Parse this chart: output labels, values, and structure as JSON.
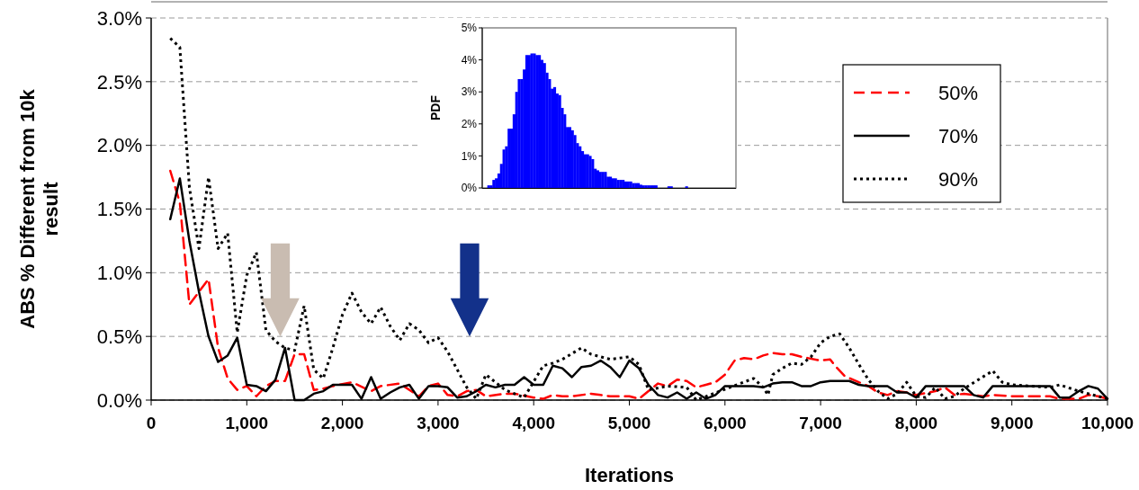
{
  "chart_data": [
    {
      "type": "line",
      "xlabel": "Iterations",
      "ylabel": "ABS % Different from 10k result",
      "xlim": [
        0,
        10000
      ],
      "ylim": [
        0,
        3
      ],
      "xticks": [
        0,
        {
          "value": 1000,
          "label": "1,000"
        },
        {
          "value": 2000,
          "label": "2,000"
        },
        {
          "value": 3000,
          "label": "3,000"
        },
        {
          "value": 4000,
          "label": "4,000"
        },
        {
          "value": 5000,
          "label": "5,000"
        },
        {
          "value": 6000,
          "label": "6,000"
        },
        {
          "value": 7000,
          "label": "7,000"
        },
        {
          "value": 8000,
          "label": "8,000"
        },
        {
          "value": 9000,
          "label": "9,000"
        },
        {
          "value": 10000,
          "label": "10,000"
        }
      ],
      "yticks": [
        {
          "value": 0,
          "label": "0.0%"
        },
        {
          "value": 0.5,
          "label": "0.5%"
        },
        {
          "value": 1,
          "label": "1.0%"
        },
        {
          "value": 1.5,
          "label": "1.5%"
        },
        {
          "value": 2,
          "label": "2.0%"
        },
        {
          "value": 2.5,
          "label": "2.5%"
        },
        {
          "value": 3,
          "label": "3.0%"
        }
      ],
      "grid": "y",
      "legend": "top right",
      "marker": "none",
      "series": [
        {
          "name": "50%",
          "color": "#ff0000",
          "line_style": "dashed",
          "x": [
            200,
            300,
            400,
            500,
            600,
            700,
            800,
            900,
            1000,
            1100,
            1200,
            1300,
            1400,
            1500,
            1600,
            1700,
            1800,
            1900,
            2100,
            2300,
            2400,
            2600,
            2800,
            2900,
            3000,
            3100,
            3200,
            3300,
            3400,
            3500,
            3700,
            3800,
            4000,
            4100,
            4200,
            4300,
            4400,
            4600,
            4700,
            4800,
            5000,
            5100,
            5200,
            5300,
            5400,
            5500,
            5600,
            5700,
            5800,
            5900,
            6000,
            6100,
            6200,
            6300,
            6400,
            6500,
            6600,
            6700,
            6800,
            7000,
            7100,
            7150,
            7250,
            7400,
            7500,
            7600,
            7700,
            7800,
            7900,
            8000,
            8200,
            8300,
            8400,
            8500,
            8600,
            8700,
            8800,
            9000,
            9200,
            9400,
            9500,
            9700,
            9800,
            9900,
            10000
          ],
          "values": [
            1.8,
            1.55,
            0.75,
            0.85,
            0.95,
            0.41,
            0.17,
            0.08,
            0.11,
            0.03,
            0.11,
            0.15,
            0.15,
            0.36,
            0.36,
            0.08,
            0.09,
            0.11,
            0.14,
            0.07,
            0.11,
            0.13,
            0.03,
            0.11,
            0.13,
            0.04,
            0.03,
            0.07,
            0.08,
            0.03,
            0.05,
            0.05,
            0.02,
            0.01,
            0.04,
            0.03,
            0.03,
            0.05,
            0.04,
            0.03,
            0.03,
            0.01,
            0.07,
            0.13,
            0.11,
            0.16,
            0.15,
            0.1,
            0.12,
            0.14,
            0.2,
            0.31,
            0.33,
            0.32,
            0.35,
            0.37,
            0.36,
            0.36,
            0.34,
            0.31,
            0.32,
            0.27,
            0.19,
            0.14,
            0.11,
            0.06,
            0.04,
            0.07,
            0.06,
            0.04,
            0.07,
            0.1,
            0.04,
            0.05,
            0.04,
            0.03,
            0.04,
            0.03,
            0.03,
            0.03,
            0.01,
            0.01,
            0.04,
            0.03,
            0.01
          ]
        },
        {
          "name": "70%",
          "color": "#000000",
          "line_style": "solid",
          "x": [
            200,
            300,
            400,
            500,
            600,
            700,
            800,
            900,
            1000,
            1100,
            1200,
            1300,
            1400,
            1500,
            1600,
            1700,
            1800,
            1900,
            2000,
            2100,
            2200,
            2300,
            2400,
            2500,
            2600,
            2700,
            2800,
            2900,
            3000,
            3100,
            3200,
            3300,
            3400,
            3500,
            3600,
            3700,
            3800,
            3900,
            4000,
            4100,
            4200,
            4300,
            4400,
            4500,
            4600,
            4700,
            4800,
            4900,
            5000,
            5100,
            5200,
            5300,
            5400,
            5500,
            5600,
            5700,
            5800,
            5900,
            6000,
            6100,
            6200,
            6300,
            6400,
            6500,
            6600,
            6700,
            6800,
            6900,
            7000,
            7100,
            7200,
            7300,
            7400,
            7500,
            7600,
            7700,
            7800,
            7900,
            8000,
            8100,
            8200,
            8300,
            8400,
            8500,
            8600,
            8700,
            8800,
            8900,
            9000,
            9100,
            9200,
            9300,
            9400,
            9500,
            9600,
            9700,
            9800,
            9900,
            10000
          ],
          "values": [
            1.42,
            1.74,
            1.25,
            0.85,
            0.5,
            0.3,
            0.35,
            0.49,
            0.12,
            0.11,
            0.07,
            0.16,
            0.41,
            0.0,
            0.0,
            0.05,
            0.07,
            0.12,
            0.12,
            0.12,
            0.01,
            0.18,
            0.01,
            0.06,
            0.1,
            0.12,
            0.01,
            0.11,
            0.11,
            0.1,
            0.02,
            0.03,
            0.07,
            0.12,
            0.1,
            0.12,
            0.12,
            0.18,
            0.12,
            0.12,
            0.27,
            0.25,
            0.18,
            0.26,
            0.27,
            0.31,
            0.26,
            0.18,
            0.31,
            0.25,
            0.12,
            0.04,
            0.02,
            0.06,
            0.01,
            0.06,
            0.01,
            0.04,
            0.11,
            0.11,
            0.11,
            0.11,
            0.1,
            0.13,
            0.14,
            0.14,
            0.11,
            0.11,
            0.14,
            0.15,
            0.15,
            0.15,
            0.12,
            0.11,
            0.11,
            0.11,
            0.06,
            0.06,
            0.02,
            0.11,
            0.11,
            0.11,
            0.11,
            0.11,
            0.04,
            0.02,
            0.11,
            0.11,
            0.11,
            0.11,
            0.11,
            0.11,
            0.11,
            0.02,
            0.02,
            0.07,
            0.11,
            0.09,
            0.01
          ]
        },
        {
          "name": "90%",
          "color": "#000000",
          "line_style": "dotted",
          "x": [
            200,
            300,
            400,
            500,
            600,
            700,
            800,
            900,
            1000,
            1100,
            1200,
            1300,
            1400,
            1500,
            1600,
            1700,
            1800,
            1900,
            2000,
            2100,
            2200,
            2300,
            2400,
            2500,
            2600,
            2700,
            2800,
            2900,
            3000,
            3100,
            3200,
            3300,
            3400,
            3500,
            3700,
            3900,
            4100,
            4200,
            4300,
            4500,
            4600,
            4800,
            5000,
            5100,
            5200,
            5400,
            5600,
            5700,
            6300,
            6400,
            6450,
            6500,
            6600,
            6700,
            6800,
            6900,
            7000,
            7100,
            7200,
            7300,
            7400,
            7500,
            7600,
            7700,
            7800,
            7900,
            8000,
            8100,
            8200,
            8300,
            8400,
            8500,
            8800,
            8900,
            9000,
            9200,
            9400,
            9500,
            9700,
            10000
          ],
          "values": [
            2.84,
            2.77,
            1.67,
            1.19,
            1.75,
            1.19,
            1.31,
            0.53,
            0.98,
            1.16,
            0.55,
            0.46,
            0.41,
            0.39,
            0.74,
            0.24,
            0.17,
            0.41,
            0.67,
            0.84,
            0.69,
            0.6,
            0.73,
            0.58,
            0.47,
            0.6,
            0.55,
            0.45,
            0.49,
            0.38,
            0.24,
            0.1,
            0.01,
            0.2,
            0.08,
            0.02,
            0.27,
            0.29,
            0.32,
            0.41,
            0.36,
            0.32,
            0.34,
            0.28,
            0.08,
            0.11,
            0.1,
            0.0,
            0.17,
            0.1,
            0.04,
            0.2,
            0.25,
            0.29,
            0.28,
            0.34,
            0.45,
            0.5,
            0.52,
            0.41,
            0.28,
            0.16,
            0.07,
            0.01,
            0.05,
            0.14,
            0.03,
            0.02,
            0.1,
            0.01,
            0.03,
            0.09,
            0.23,
            0.14,
            0.12,
            0.11,
            0.1,
            0.12,
            0.07,
            0.01
          ]
        }
      ]
    },
    {
      "type": "bar",
      "ylabel": "PDF",
      "ylim": [
        0,
        5
      ],
      "yticks": [
        {
          "value": 0,
          "label": "0%"
        },
        {
          "value": 1,
          "label": "1%"
        },
        {
          "value": 2,
          "label": "2%"
        },
        {
          "value": 3,
          "label": "3%"
        },
        {
          "value": 4,
          "label": "4%"
        },
        {
          "value": 5,
          "label": "5%"
        }
      ],
      "color": "#0000ff",
      "categories": [
        null,
        null,
        null,
        null,
        null,
        null,
        null,
        null,
        null,
        null,
        null,
        null,
        null,
        null,
        null,
        null,
        null,
        null,
        null,
        null,
        null,
        null,
        null,
        null,
        null,
        null,
        null,
        null,
        null,
        null,
        null,
        null,
        null,
        null,
        null,
        null,
        null,
        null,
        null,
        null,
        null,
        null,
        null,
        null,
        null,
        null,
        null,
        null,
        null,
        null,
        null,
        null,
        null,
        null,
        null,
        null,
        null,
        null,
        null,
        null,
        null,
        null,
        null,
        null,
        null,
        null,
        null,
        null,
        null,
        null,
        null,
        null,
        null,
        null,
        null,
        null,
        null,
        null,
        null,
        null,
        null,
        null,
        null,
        null,
        null,
        null,
        null,
        null,
        null,
        null,
        null,
        null,
        null,
        null,
        null,
        null,
        null,
        null,
        null,
        null
      ],
      "values": [
        0,
        0,
        0.08,
        0.08,
        0.25,
        0.3,
        0.45,
        0.75,
        1.2,
        1.3,
        1.85,
        1.85,
        2.3,
        3.0,
        3.4,
        3.4,
        3.7,
        4.15,
        4.15,
        4.2,
        4.2,
        4.15,
        4.15,
        4.0,
        3.9,
        3.6,
        3.4,
        3.1,
        3.15,
        2.95,
        2.9,
        2.5,
        2.3,
        1.9,
        1.9,
        1.8,
        1.65,
        1.4,
        1.3,
        1.15,
        1.05,
        1.05,
        1.0,
        0.9,
        0.6,
        0.55,
        0.5,
        0.5,
        0.5,
        0.35,
        0.35,
        0.3,
        0.3,
        0.25,
        0.25,
        0.25,
        0.2,
        0.2,
        0.2,
        0.15,
        0.15,
        0.15,
        0.1,
        0.08,
        0.08,
        0.08,
        0.08,
        0.08,
        0.08,
        0,
        0,
        0,
        0,
        0.05,
        0.05,
        0,
        0,
        0,
        0,
        0,
        0.05,
        0,
        0,
        0,
        0,
        0,
        0,
        0,
        0,
        0,
        0,
        0,
        0,
        0,
        0,
        0,
        0,
        0,
        0,
        0
      ]
    }
  ]
}
